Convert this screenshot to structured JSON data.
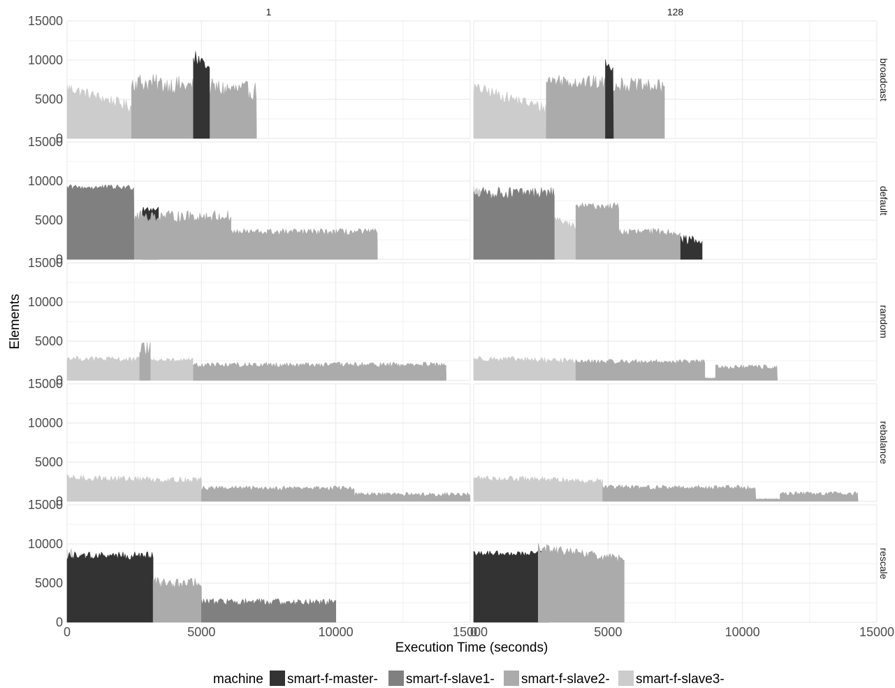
{
  "chart_data": {
    "type": "area",
    "xlabel": "Execution Time (seconds)",
    "ylabel": "Elements",
    "xlim": [
      0,
      15000
    ],
    "ylim": [
      0,
      15000
    ],
    "x_ticks": [
      0,
      5000,
      10000,
      15000
    ],
    "y_ticks": [
      0,
      5000,
      10000,
      15000
    ],
    "x_tick_labels": [
      "0",
      "5000",
      "10000",
      "15000"
    ],
    "y_tick_labels": [
      "0",
      "5000",
      "10000",
      "15000"
    ],
    "grid": true,
    "stacked": true,
    "facet_columns": [
      "1",
      "128"
    ],
    "facet_rows": [
      "broadcast",
      "default",
      "random",
      "rebalance",
      "rescale"
    ],
    "legend": {
      "title": "machine",
      "position": "bottom",
      "entries": [
        "smart-f-master-",
        "smart-f-slave1-",
        "smart-f-slave2-",
        "smart-f-slave3-"
      ]
    },
    "colors": {
      "smart-f-master-": "#333333",
      "smart-f-slave1-": "#808080",
      "smart-f-slave2-": "#ababab",
      "smart-f-slave3-": "#cccccc"
    },
    "panels": [
      {
        "row": "broadcast",
        "col": "1",
        "segments": [
          {
            "machine": "smart-f-slave3-",
            "start": 0,
            "end": 2400,
            "level": 4000,
            "top": 6500,
            "noise": 1500
          },
          {
            "machine": "smart-f-slave2-",
            "start": 2400,
            "end": 7050,
            "level": 6000,
            "top": 7200,
            "noise": 2500
          },
          {
            "machine": "smart-f-master-",
            "start": 4700,
            "end": 5300,
            "level": 8500,
            "top": 10500,
            "noise": 2000
          }
        ]
      },
      {
        "row": "broadcast",
        "col": "128",
        "segments": [
          {
            "machine": "smart-f-slave3-",
            "start": 0,
            "end": 2700,
            "level": 3800,
            "top": 6500,
            "noise": 1500
          },
          {
            "machine": "smart-f-slave2-",
            "start": 2700,
            "end": 7100,
            "level": 6500,
            "top": 7500,
            "noise": 2000
          },
          {
            "machine": "smart-f-master-",
            "start": 4900,
            "end": 5200,
            "level": 8500,
            "top": 10000,
            "noise": 1200
          }
        ]
      },
      {
        "row": "default",
        "col": "1",
        "segments": [
          {
            "machine": "smart-f-slave3-",
            "start": 0,
            "end": 2500,
            "level": 4200,
            "top": 9200,
            "noise": 800
          },
          {
            "machine": "smart-f-slave1-",
            "start": 0,
            "end": 2500,
            "level": 9200,
            "top": 9200,
            "noise": 700
          },
          {
            "machine": "smart-f-master-",
            "start": 2800,
            "end": 3400,
            "level": 6500,
            "top": 6500,
            "noise": 900
          },
          {
            "machine": "smart-f-slave2-",
            "start": 2500,
            "end": 6100,
            "level": 5500,
            "top": 5500,
            "noise": 1500
          },
          {
            "machine": "smart-f-slave2-",
            "start": 6100,
            "end": 11550,
            "level": 3500,
            "top": 3500,
            "noise": 900
          }
        ]
      },
      {
        "row": "default",
        "col": "128",
        "segments": [
          {
            "machine": "smart-f-slave3-",
            "start": 0,
            "end": 3800,
            "level": 4200,
            "top": 9000,
            "noise": 800
          },
          {
            "machine": "smart-f-slave1-",
            "start": 0,
            "end": 3000,
            "level": 8500,
            "top": 8500,
            "noise": 1500
          },
          {
            "machine": "smart-f-slave2-",
            "start": 3800,
            "end": 5400,
            "level": 6800,
            "top": 6800,
            "noise": 900
          },
          {
            "machine": "smart-f-slave2-",
            "start": 5400,
            "end": 7700,
            "level": 3500,
            "top": 3500,
            "noise": 1000
          },
          {
            "machine": "smart-f-master-",
            "start": 7700,
            "end": 8500,
            "level": 2500,
            "top": 2500,
            "noise": 1200
          }
        ]
      },
      {
        "row": "random",
        "col": "1",
        "segments": [
          {
            "machine": "smart-f-slave3-",
            "start": 0,
            "end": 4700,
            "level": 2500,
            "top": 2800,
            "noise": 700
          },
          {
            "machine": "smart-f-slave2-",
            "start": 2700,
            "end": 3100,
            "level": 4000,
            "top": 4000,
            "noise": 1800
          },
          {
            "machine": "smart-f-slave1-",
            "start": 4700,
            "end": 14100,
            "level": 1200,
            "top": 1200,
            "noise": 400
          },
          {
            "machine": "smart-f-slave2-",
            "start": 4700,
            "end": 14100,
            "level": 2000,
            "top": 2000,
            "noise": 700
          }
        ]
      },
      {
        "row": "random",
        "col": "128",
        "segments": [
          {
            "machine": "smart-f-slave3-",
            "start": 0,
            "end": 3800,
            "level": 2500,
            "top": 2800,
            "noise": 700
          },
          {
            "machine": "smart-f-slave2-",
            "start": 3800,
            "end": 8600,
            "level": 2400,
            "top": 2400,
            "noise": 600
          },
          {
            "machine": "smart-f-slave2-",
            "start": 8600,
            "end": 9000,
            "level": 300,
            "top": 300,
            "noise": 100
          },
          {
            "machine": "smart-f-slave2-",
            "start": 9000,
            "end": 11300,
            "level": 1700,
            "top": 1700,
            "noise": 600
          }
        ]
      },
      {
        "row": "rebalance",
        "col": "1",
        "segments": [
          {
            "machine": "smart-f-slave3-",
            "start": 0,
            "end": 5000,
            "level": 2700,
            "top": 3000,
            "noise": 800
          },
          {
            "machine": "smart-f-slave2-",
            "start": 5000,
            "end": 10700,
            "level": 1700,
            "top": 1700,
            "noise": 600
          },
          {
            "machine": "smart-f-slave2-",
            "start": 10700,
            "end": 15000,
            "level": 900,
            "top": 900,
            "noise": 500
          }
        ]
      },
      {
        "row": "rebalance",
        "col": "128",
        "segments": [
          {
            "machine": "smart-f-slave3-",
            "start": 0,
            "end": 4800,
            "level": 2600,
            "top": 3000,
            "noise": 700
          },
          {
            "machine": "smart-f-slave2-",
            "start": 4800,
            "end": 10500,
            "level": 1800,
            "top": 1800,
            "noise": 600
          },
          {
            "machine": "smart-f-slave2-",
            "start": 10500,
            "end": 11400,
            "level": 300,
            "top": 300,
            "noise": 100
          },
          {
            "machine": "smart-f-slave2-",
            "start": 11400,
            "end": 14300,
            "level": 1000,
            "top": 1000,
            "noise": 600
          }
        ]
      },
      {
        "row": "rescale",
        "col": "1",
        "segments": [
          {
            "machine": "smart-f-slave3-",
            "start": 0,
            "end": 5000,
            "level": 3000,
            "top": 9000,
            "noise": 1500
          },
          {
            "machine": "smart-f-master-",
            "start": 0,
            "end": 3200,
            "level": 8500,
            "top": 8500,
            "noise": 1000
          },
          {
            "machine": "smart-f-slave2-",
            "start": 3200,
            "end": 5000,
            "level": 5000,
            "top": 5000,
            "noise": 1500
          },
          {
            "machine": "smart-f-slave1-",
            "start": 5000,
            "end": 10000,
            "level": 2600,
            "top": 2600,
            "noise": 900
          }
        ]
      },
      {
        "row": "rescale",
        "col": "128",
        "segments": [
          {
            "machine": "smart-f-slave3-",
            "start": 0,
            "end": 2400,
            "level": 3500,
            "top": 8500,
            "noise": 1500
          },
          {
            "machine": "smart-f-master-",
            "start": 0,
            "end": 2800,
            "level": 8800,
            "top": 8800,
            "noise": 700
          },
          {
            "machine": "smart-f-slave2-",
            "start": 2400,
            "end": 5600,
            "level": 8000,
            "top": 9500,
            "noise": 1200
          }
        ]
      }
    ]
  }
}
